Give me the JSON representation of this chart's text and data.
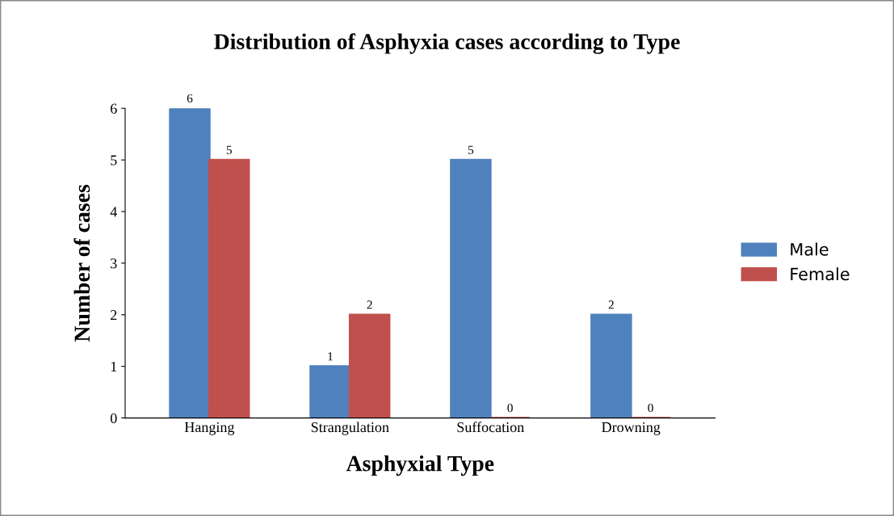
{
  "chart_data": {
    "type": "bar",
    "title": "Distribution of Asphyxia cases according to Type",
    "xlabel": "Asphyxial Type",
    "ylabel": "Number of cases",
    "categories": [
      "Hanging",
      "Strangulation",
      "Suffocation",
      "Drowning"
    ],
    "series": [
      {
        "name": "Male",
        "color": "#4f81bd",
        "values": [
          6,
          1,
          5,
          2
        ]
      },
      {
        "name": "Female",
        "color": "#c0504d",
        "values": [
          5,
          2,
          0,
          0
        ]
      }
    ],
    "ylim": [
      0,
      6
    ],
    "yticks": [
      0,
      1,
      2,
      3,
      4,
      5,
      6
    ],
    "grid": false,
    "legend": "right",
    "data_labels": true
  }
}
